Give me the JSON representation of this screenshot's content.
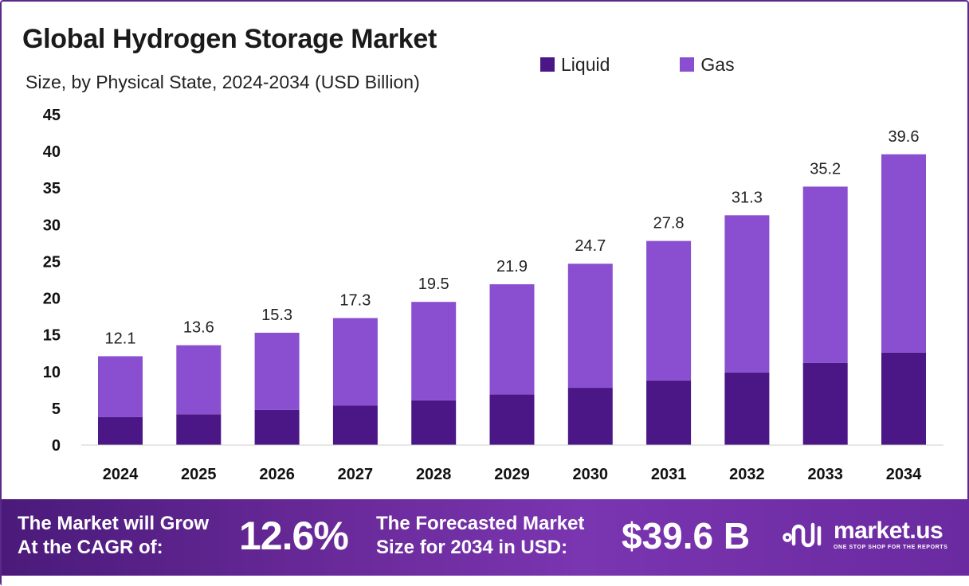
{
  "header": {
    "title": "Global Hydrogen Storage Market",
    "subtitle": "Size, by Physical State, 2024-2034 (USD Billion)"
  },
  "legend": [
    {
      "label": "Liquid",
      "color": "#4b1686"
    },
    {
      "label": "Gas",
      "color": "#8a4fd0"
    }
  ],
  "chart_data": {
    "type": "bar",
    "stacked": true,
    "title": "Global Hydrogen Storage Market",
    "subtitle": "Size, by Physical State, 2024-2034 (USD Billion)",
    "xlabel": "",
    "ylabel": "",
    "ylim": [
      0,
      45
    ],
    "yticks": [
      0,
      5,
      10,
      15,
      20,
      25,
      30,
      35,
      40,
      45
    ],
    "grid": false,
    "legend_position": "top-right",
    "categories": [
      "2024",
      "2025",
      "2026",
      "2027",
      "2028",
      "2029",
      "2030",
      "2031",
      "2032",
      "2033",
      "2034"
    ],
    "series": [
      {
        "name": "Liquid",
        "color": "#4b1686",
        "values": [
          3.8,
          4.2,
          4.8,
          5.4,
          6.1,
          6.9,
          7.8,
          8.8,
          9.9,
          11.2,
          12.6
        ]
      },
      {
        "name": "Gas",
        "color": "#8a4fd0",
        "values": [
          8.3,
          9.4,
          10.5,
          11.9,
          13.4,
          15.0,
          16.9,
          19.0,
          21.4,
          24.0,
          27.0
        ]
      }
    ],
    "totals": [
      12.1,
      13.6,
      15.3,
      17.3,
      19.5,
      21.9,
      24.7,
      27.8,
      31.3,
      35.2,
      39.6
    ],
    "total_labels": [
      "12.1",
      "13.6",
      "15.3",
      "17.3",
      "19.5",
      "21.9",
      "24.7",
      "27.8",
      "31.3",
      "35.2",
      "39.6"
    ]
  },
  "footer": {
    "cagr_label_line1": "The Market will Grow",
    "cagr_label_line2": "At the CAGR of:",
    "cagr_value": "12.6%",
    "forecast_label_line1": "The Forecasted Market",
    "forecast_label_line2": "Size for 2034 in USD:",
    "forecast_value": "$39.6 B",
    "brand_name": "market.us",
    "brand_tagline": "ONE STOP SHOP FOR THE REPORTS"
  }
}
